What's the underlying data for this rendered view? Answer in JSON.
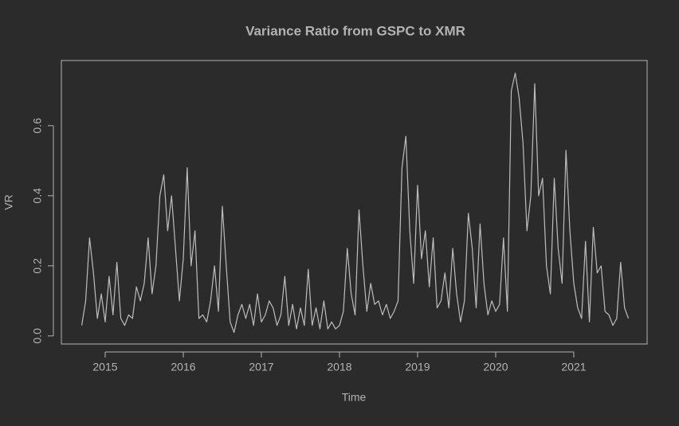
{
  "chart_data": {
    "type": "line",
    "title": "Variance Ratio from GSPC to XMR",
    "xlabel": "Time",
    "ylabel": "VR",
    "x": [
      2014.7,
      2014.75,
      2014.8,
      2014.85,
      2014.9,
      2014.95,
      2015.0,
      2015.05,
      2015.1,
      2015.15,
      2015.2,
      2015.25,
      2015.3,
      2015.35,
      2015.4,
      2015.45,
      2015.5,
      2015.55,
      2015.6,
      2015.65,
      2015.7,
      2015.75,
      2015.8,
      2015.85,
      2015.9,
      2015.95,
      2016.0,
      2016.05,
      2016.1,
      2016.15,
      2016.2,
      2016.25,
      2016.3,
      2016.35,
      2016.4,
      2016.45,
      2016.5,
      2016.55,
      2016.6,
      2016.65,
      2016.7,
      2016.75,
      2016.8,
      2016.85,
      2016.9,
      2016.95,
      2017.0,
      2017.05,
      2017.1,
      2017.15,
      2017.2,
      2017.25,
      2017.3,
      2017.35,
      2017.4,
      2017.45,
      2017.5,
      2017.55,
      2017.6,
      2017.65,
      2017.7,
      2017.75,
      2017.8,
      2017.85,
      2017.9,
      2017.95,
      2018.0,
      2018.05,
      2018.1,
      2018.15,
      2018.2,
      2018.25,
      2018.3,
      2018.35,
      2018.4,
      2018.45,
      2018.5,
      2018.55,
      2018.6,
      2018.65,
      2018.7,
      2018.75,
      2018.8,
      2018.85,
      2018.9,
      2018.95,
      2019.0,
      2019.05,
      2019.1,
      2019.15,
      2019.2,
      2019.25,
      2019.3,
      2019.35,
      2019.4,
      2019.45,
      2019.5,
      2019.55,
      2019.6,
      2019.65,
      2019.7,
      2019.75,
      2019.8,
      2019.85,
      2019.9,
      2019.95,
      2020.0,
      2020.05,
      2020.1,
      2020.15,
      2020.2,
      2020.25,
      2020.3,
      2020.35,
      2020.4,
      2020.45,
      2020.5,
      2020.55,
      2020.6,
      2020.65,
      2020.7,
      2020.75,
      2020.8,
      2020.85,
      2020.9,
      2020.95,
      2021.0,
      2021.05,
      2021.1,
      2021.15,
      2021.2,
      2021.25,
      2021.3,
      2021.35,
      2021.4,
      2021.45,
      2021.5,
      2021.55,
      2021.6,
      2021.65,
      2021.7
    ],
    "values": [
      0.03,
      0.1,
      0.28,
      0.18,
      0.05,
      0.12,
      0.04,
      0.17,
      0.06,
      0.21,
      0.05,
      0.03,
      0.06,
      0.05,
      0.14,
      0.1,
      0.15,
      0.28,
      0.12,
      0.2,
      0.4,
      0.46,
      0.3,
      0.4,
      0.25,
      0.1,
      0.22,
      0.48,
      0.2,
      0.3,
      0.05,
      0.06,
      0.04,
      0.1,
      0.2,
      0.07,
      0.37,
      0.2,
      0.04,
      0.01,
      0.06,
      0.09,
      0.05,
      0.09,
      0.03,
      0.12,
      0.04,
      0.06,
      0.1,
      0.08,
      0.03,
      0.06,
      0.17,
      0.03,
      0.09,
      0.02,
      0.08,
      0.03,
      0.19,
      0.03,
      0.08,
      0.02,
      0.1,
      0.02,
      0.04,
      0.02,
      0.03,
      0.07,
      0.25,
      0.12,
      0.06,
      0.36,
      0.2,
      0.07,
      0.15,
      0.09,
      0.1,
      0.06,
      0.09,
      0.05,
      0.07,
      0.1,
      0.48,
      0.57,
      0.3,
      0.15,
      0.43,
      0.22,
      0.3,
      0.14,
      0.28,
      0.08,
      0.1,
      0.18,
      0.08,
      0.25,
      0.12,
      0.04,
      0.1,
      0.35,
      0.25,
      0.08,
      0.32,
      0.15,
      0.06,
      0.1,
      0.07,
      0.09,
      0.28,
      0.07,
      0.7,
      0.75,
      0.68,
      0.55,
      0.3,
      0.4,
      0.72,
      0.4,
      0.45,
      0.2,
      0.12,
      0.45,
      0.25,
      0.15,
      0.53,
      0.3,
      0.15,
      0.08,
      0.05,
      0.27,
      0.04,
      0.31,
      0.18,
      0.2,
      0.07,
      0.06,
      0.03,
      0.05,
      0.21,
      0.08,
      0.05
    ],
    "color": "#bdbdbd",
    "xlim": [
      2014.439,
      2021.939
    ],
    "ylim": [
      -0.023,
      0.786
    ],
    "xticks": [
      2015,
      2016,
      2017,
      2018,
      2019,
      2020,
      2021
    ],
    "yticks": [
      {
        "value": 0,
        "label": "0.0"
      },
      0.2,
      0.4,
      0.6
    ]
  }
}
